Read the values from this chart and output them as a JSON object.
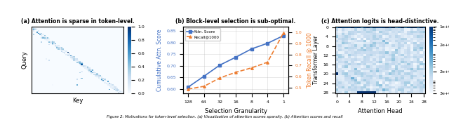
{
  "fig_width": 6.4,
  "fig_height": 1.71,
  "dpi": 100,
  "panel_a": {
    "title": "(a) Attention is sparse in token-level.",
    "xlabel": "Key",
    "ylabel": "Query",
    "cmap": "Blues",
    "n": 60,
    "colorbar_ticks": [
      0.0,
      0.2,
      0.4,
      0.6,
      0.8,
      1.0
    ]
  },
  "panel_b": {
    "title": "(b) Block-level selection is sub-optimal.",
    "xlabel": "Selection Granularity",
    "ylabel_left": "Cumulative Attn. Score",
    "ylabel_right": "Token Recall @ 1000",
    "x_labels": [
      "128",
      "64",
      "32",
      "16",
      "8",
      "4",
      "1"
    ],
    "attn_score": [
      0.608,
      0.655,
      0.703,
      0.737,
      0.773,
      0.797,
      0.83
    ],
    "recall": [
      0.49,
      0.515,
      0.59,
      0.64,
      0.68,
      0.73,
      0.99
    ],
    "attn_color": "#4472C4",
    "recall_color": "#ED7D31",
    "attn_ylim": [
      0.58,
      0.87
    ],
    "recall_ylim": [
      0.45,
      1.05
    ],
    "attn_yticks": [
      0.6,
      0.65,
      0.7,
      0.75,
      0.8,
      0.85
    ],
    "recall_yticks": [
      0.5,
      0.6,
      0.7,
      0.8,
      0.9,
      1.0
    ]
  },
  "panel_c": {
    "title": "(c) Attention logits is head-distinctive.",
    "xlabel": "Attention Head",
    "ylabel": "Transformer Layer",
    "n_layers": 29,
    "n_heads": 29,
    "cmap": "Blues",
    "colorbar_ticks": [
      3000,
      20000,
      200000,
      1000000
    ],
    "colorbar_labels": [
      "3e+03",
      "2e+04",
      "2e+05",
      "1e+06"
    ],
    "xticks": [
      0,
      4,
      8,
      12,
      16,
      20,
      24,
      28
    ],
    "yticks": [
      0,
      4,
      8,
      12,
      16,
      20,
      24,
      28
    ]
  },
  "caption": "Figure 2: Motivations for token-level selection. (a) Visualization of attention scores sparsity. (b) Attention scores and recall"
}
